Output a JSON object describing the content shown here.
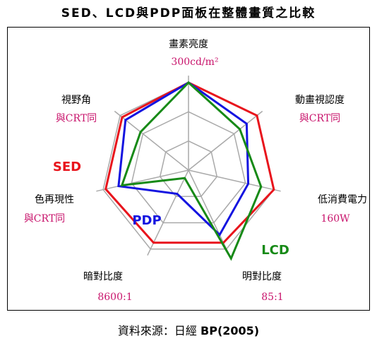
{
  "title": "SED、LCD與PDP面板在整體畫質之比較",
  "source": {
    "label": "資料來源：日經",
    "publisher": "BP(2005)"
  },
  "colors": {
    "SED": "#e8141c",
    "PDP": "#1414e0",
    "LCD": "#178a17",
    "grid": "#a9a9a9",
    "reference": "#c8136b"
  },
  "chart_data": {
    "type": "radar",
    "axes": [
      {
        "label": "畫素亮度",
        "reference": "300cd/m²"
      },
      {
        "label": "動畫視認度",
        "reference": "與CRT同"
      },
      {
        "label": "低消費電力",
        "reference": "160W"
      },
      {
        "label": "明對比度",
        "reference": "85:1"
      },
      {
        "label": "暗對比度",
        "reference": "8600:1"
      },
      {
        "label": "色再現性",
        "reference": "與CRT同"
      },
      {
        "label": "視野角",
        "reference": "與CRT同"
      }
    ],
    "rings": 3,
    "scale_max": 1.0,
    "series": [
      {
        "name": "SED",
        "values": [
          1.0,
          1.0,
          1.0,
          0.92,
          0.92,
          0.97,
          0.97
        ]
      },
      {
        "name": "PDP",
        "values": [
          1.0,
          0.85,
          0.7,
          0.82,
          0.3,
          0.82,
          0.92
        ]
      },
      {
        "name": "LCD",
        "values": [
          1.0,
          0.75,
          0.85,
          1.12,
          0.1,
          0.78,
          0.7
        ]
      }
    ]
  }
}
